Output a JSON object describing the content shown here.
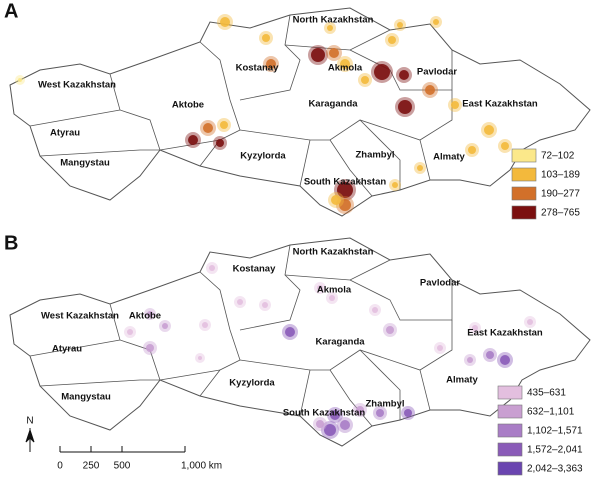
{
  "panels": [
    {
      "label": "A",
      "regions": [
        "North Kazakhstan",
        "Pavlodar",
        "Kostanay",
        "Akmola",
        "West Kazakhstan",
        "Aktobe",
        "Karaganda",
        "East Kazakhstan",
        "Atyrau",
        "Kyzylorda",
        "Zhambyl",
        "Almaty",
        "Mangystau",
        "South Kazakhstan"
      ],
      "legend": [
        {
          "label": "72–102",
          "color": "#fbe88a"
        },
        {
          "label": "103–189",
          "color": "#f3b93c"
        },
        {
          "label": "190–277",
          "color": "#d2702a"
        },
        {
          "label": "278–765",
          "color": "#7b1010"
        }
      ]
    },
    {
      "label": "B",
      "regions": [
        "North Kazakhstan",
        "Pavlodar",
        "Kostanay",
        "Akmola",
        "West Kazakhstan",
        "Aktobe",
        "Karaganda",
        "East Kazakhstan",
        "Atyrau",
        "Kyzylorda",
        "Zhambyl",
        "Almaty",
        "Mangystau",
        "South Kazakhstan"
      ],
      "legend": [
        {
          "label": "435–631",
          "color": "#e3bfdf"
        },
        {
          "label": "632–1,101",
          "color": "#c99fd1"
        },
        {
          "label": "1,102–1,571",
          "color": "#a97dc6"
        },
        {
          "label": "1,572–2,041",
          "color": "#8a5bb8"
        },
        {
          "label": "2,042–3,363",
          "color": "#6a45b0"
        }
      ]
    }
  ],
  "scale_bar": {
    "north": "N",
    "labels": [
      "0",
      "250",
      "500",
      "1,000 km"
    ]
  }
}
